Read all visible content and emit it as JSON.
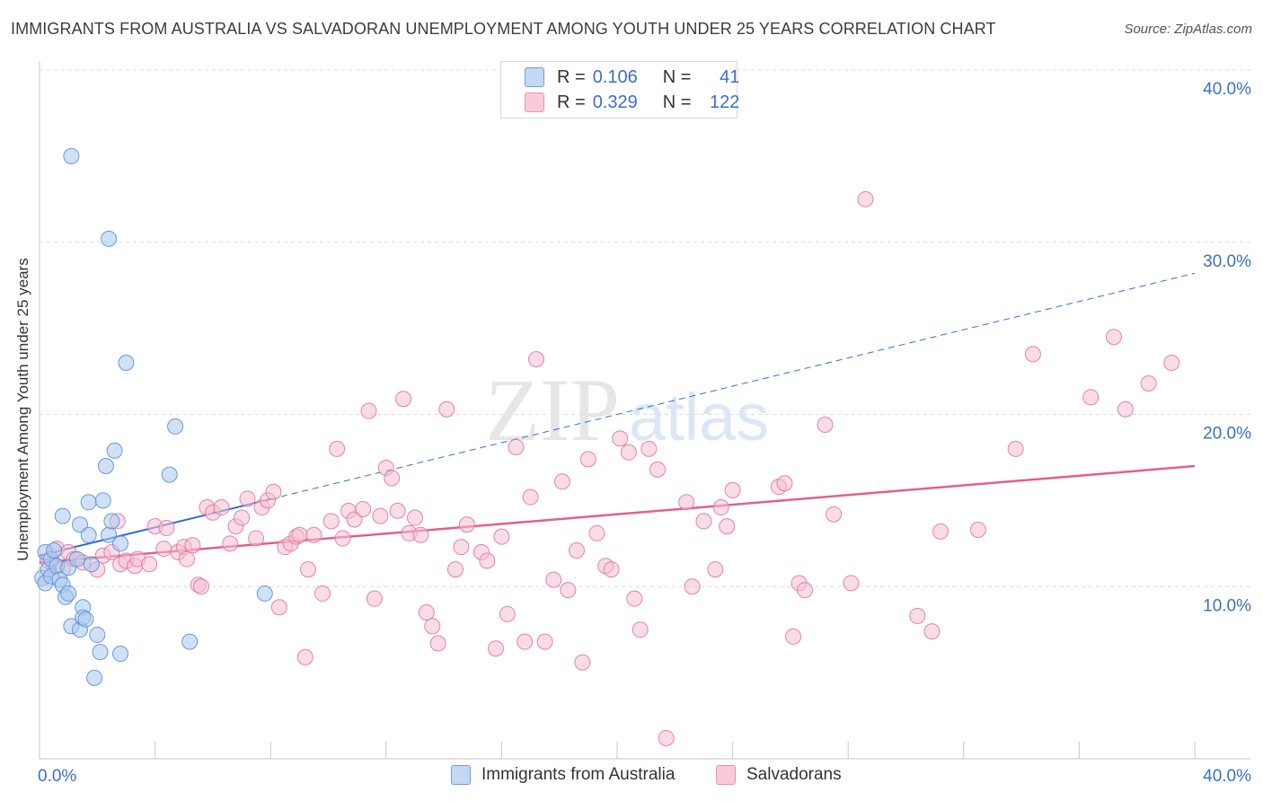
{
  "title": "IMMIGRANTS FROM AUSTRALIA VS SALVADORAN UNEMPLOYMENT AMONG YOUTH UNDER 25 YEARS CORRELATION CHART",
  "source": "Source: ZipAtlas.com",
  "watermark": {
    "zip": "ZIP",
    "atlas": "atlas"
  },
  "colors": {
    "blue_fill": "#aac8f0",
    "blue_stroke": "#5a8fd8",
    "blue_line": "#2f6fd1",
    "pink_fill": "#f6bfd1",
    "pink_stroke": "#e0789c",
    "pink_line": "#e0608e",
    "tick_text": "#3b6fc8",
    "grid": "#dcdcdc"
  },
  "legend": {
    "rows": [
      {
        "r_label": "R =",
        "r_value": "0.106",
        "n_label": "N =",
        "n_value": "41"
      },
      {
        "r_label": "R =",
        "r_value": "0.329",
        "n_label": "N =",
        "n_value": "122"
      }
    ]
  },
  "bottom_legend": [
    "Immigrants from Australia",
    "Salvadorans"
  ],
  "chart_data": {
    "type": "scatter",
    "title": "IMMIGRANTS FROM AUSTRALIA VS SALVADORAN UNEMPLOYMENT AMONG YOUTH UNDER 25 YEARS CORRELATION CHART",
    "xlabel": "",
    "ylabel": "Unemployment Among Youth under 25 years",
    "xlim": [
      0,
      40
    ],
    "ylim": [
      0,
      40
    ],
    "x_tick_labels": [
      "0.0%",
      "40.0%"
    ],
    "y_ticks": [
      10,
      20,
      30,
      40
    ],
    "y_tick_labels": [
      "10.0%",
      "20.0%",
      "30.0%",
      "40.0%"
    ],
    "grid": true,
    "legend_position": "top-center",
    "series": [
      {
        "name": "Immigrants from Australia",
        "r": 0.106,
        "n": 41,
        "trend": {
          "x0": 0,
          "y0": 11.8,
          "x1": 40,
          "y1": 28.2,
          "solid_until_x": 8
        },
        "points": [
          [
            0.1,
            10.5
          ],
          [
            0.2,
            12.0
          ],
          [
            0.2,
            10.2
          ],
          [
            0.3,
            11.0
          ],
          [
            0.4,
            11.6
          ],
          [
            0.4,
            10.6
          ],
          [
            0.5,
            12.1
          ],
          [
            0.6,
            11.2
          ],
          [
            0.7,
            10.4
          ],
          [
            0.8,
            14.1
          ],
          [
            0.8,
            10.1
          ],
          [
            0.9,
            9.4
          ],
          [
            1.0,
            9.6
          ],
          [
            1.0,
            11.1
          ],
          [
            1.1,
            7.7
          ],
          [
            1.1,
            35.0
          ],
          [
            1.3,
            11.6
          ],
          [
            1.4,
            13.6
          ],
          [
            1.4,
            7.5
          ],
          [
            1.5,
            8.8
          ],
          [
            1.5,
            8.2
          ],
          [
            1.6,
            8.1
          ],
          [
            1.7,
            13.0
          ],
          [
            1.7,
            14.9
          ],
          [
            1.8,
            11.3
          ],
          [
            1.9,
            4.7
          ],
          [
            2.0,
            7.2
          ],
          [
            2.1,
            6.2
          ],
          [
            2.2,
            15.0
          ],
          [
            2.3,
            17.0
          ],
          [
            2.4,
            13.0
          ],
          [
            2.4,
            30.2
          ],
          [
            2.5,
            13.8
          ],
          [
            2.6,
            17.9
          ],
          [
            2.8,
            12.5
          ],
          [
            2.8,
            6.1
          ],
          [
            3.0,
            23.0
          ],
          [
            4.5,
            16.5
          ],
          [
            4.7,
            19.3
          ],
          [
            5.2,
            6.8
          ],
          [
            7.8,
            9.6
          ]
        ]
      },
      {
        "name": "Salvadorans",
        "r": 0.329,
        "n": 122,
        "trend": {
          "x0": 0,
          "y0": 11.4,
          "x1": 40,
          "y1": 17.0
        },
        "points": [
          [
            0.3,
            11.5
          ],
          [
            0.5,
            11.2
          ],
          [
            0.6,
            12.2
          ],
          [
            0.8,
            11.0
          ],
          [
            1.0,
            12.0
          ],
          [
            1.2,
            11.6
          ],
          [
            1.5,
            11.4
          ],
          [
            2.0,
            11.0
          ],
          [
            2.2,
            11.8
          ],
          [
            2.5,
            12.0
          ],
          [
            2.7,
            13.8
          ],
          [
            2.8,
            11.3
          ],
          [
            3.0,
            11.5
          ],
          [
            3.3,
            11.2
          ],
          [
            3.4,
            11.6
          ],
          [
            3.8,
            11.3
          ],
          [
            4.0,
            13.5
          ],
          [
            4.3,
            12.2
          ],
          [
            4.4,
            13.4
          ],
          [
            4.8,
            12.0
          ],
          [
            5.0,
            12.3
          ],
          [
            5.1,
            11.6
          ],
          [
            5.3,
            12.4
          ],
          [
            5.5,
            10.1
          ],
          [
            5.6,
            10.0
          ],
          [
            5.8,
            14.6
          ],
          [
            6.0,
            14.3
          ],
          [
            6.3,
            14.6
          ],
          [
            6.6,
            12.5
          ],
          [
            6.8,
            13.5
          ],
          [
            7.0,
            14.0
          ],
          [
            7.2,
            15.1
          ],
          [
            7.5,
            12.8
          ],
          [
            7.7,
            14.6
          ],
          [
            7.9,
            15.0
          ],
          [
            8.1,
            15.5
          ],
          [
            8.3,
            8.8
          ],
          [
            8.5,
            12.3
          ],
          [
            8.7,
            12.5
          ],
          [
            8.9,
            12.9
          ],
          [
            9.0,
            13.0
          ],
          [
            9.2,
            5.9
          ],
          [
            9.3,
            11.0
          ],
          [
            9.5,
            13.0
          ],
          [
            9.8,
            9.6
          ],
          [
            10.1,
            13.8
          ],
          [
            10.3,
            18.0
          ],
          [
            10.5,
            12.8
          ],
          [
            10.7,
            14.4
          ],
          [
            10.9,
            13.9
          ],
          [
            11.2,
            14.5
          ],
          [
            11.4,
            20.2
          ],
          [
            11.6,
            9.3
          ],
          [
            11.8,
            14.1
          ],
          [
            12.0,
            16.9
          ],
          [
            12.2,
            16.3
          ],
          [
            12.4,
            14.4
          ],
          [
            12.6,
            20.9
          ],
          [
            12.8,
            13.1
          ],
          [
            13.0,
            14.0
          ],
          [
            13.2,
            13.0
          ],
          [
            13.4,
            8.5
          ],
          [
            13.6,
            7.7
          ],
          [
            13.8,
            6.7
          ],
          [
            14.1,
            20.3
          ],
          [
            14.4,
            11.0
          ],
          [
            14.6,
            12.3
          ],
          [
            14.8,
            13.6
          ],
          [
            15.3,
            12.0
          ],
          [
            15.5,
            11.5
          ],
          [
            15.8,
            6.4
          ],
          [
            16.0,
            12.9
          ],
          [
            16.2,
            8.4
          ],
          [
            16.5,
            18.1
          ],
          [
            16.8,
            6.8
          ],
          [
            17.0,
            15.2
          ],
          [
            17.2,
            23.2
          ],
          [
            17.5,
            6.8
          ],
          [
            17.8,
            10.4
          ],
          [
            18.1,
            16.1
          ],
          [
            18.3,
            9.8
          ],
          [
            18.6,
            12.1
          ],
          [
            18.8,
            5.6
          ],
          [
            19.0,
            17.4
          ],
          [
            19.3,
            13.1
          ],
          [
            19.6,
            11.2
          ],
          [
            19.8,
            11.0
          ],
          [
            20.1,
            18.6
          ],
          [
            20.4,
            17.8
          ],
          [
            20.6,
            9.3
          ],
          [
            20.8,
            7.5
          ],
          [
            21.1,
            18.0
          ],
          [
            21.4,
            16.8
          ],
          [
            21.7,
            1.2
          ],
          [
            22.4,
            14.9
          ],
          [
            22.6,
            10.0
          ],
          [
            23.0,
            13.8
          ],
          [
            23.4,
            11.0
          ],
          [
            23.6,
            14.6
          ],
          [
            23.8,
            13.5
          ],
          [
            24.0,
            15.6
          ],
          [
            25.6,
            15.8
          ],
          [
            25.8,
            16.0
          ],
          [
            26.1,
            7.1
          ],
          [
            26.3,
            10.2
          ],
          [
            26.5,
            9.8
          ],
          [
            27.2,
            19.4
          ],
          [
            27.5,
            14.2
          ],
          [
            28.1,
            10.2
          ],
          [
            28.6,
            32.5
          ],
          [
            30.4,
            8.3
          ],
          [
            30.9,
            7.4
          ],
          [
            31.2,
            13.2
          ],
          [
            32.5,
            13.3
          ],
          [
            33.8,
            18.0
          ],
          [
            34.4,
            23.5
          ],
          [
            36.4,
            21.0
          ],
          [
            37.2,
            24.5
          ],
          [
            37.6,
            20.3
          ],
          [
            38.4,
            21.8
          ],
          [
            39.2,
            23.0
          ]
        ]
      }
    ]
  }
}
